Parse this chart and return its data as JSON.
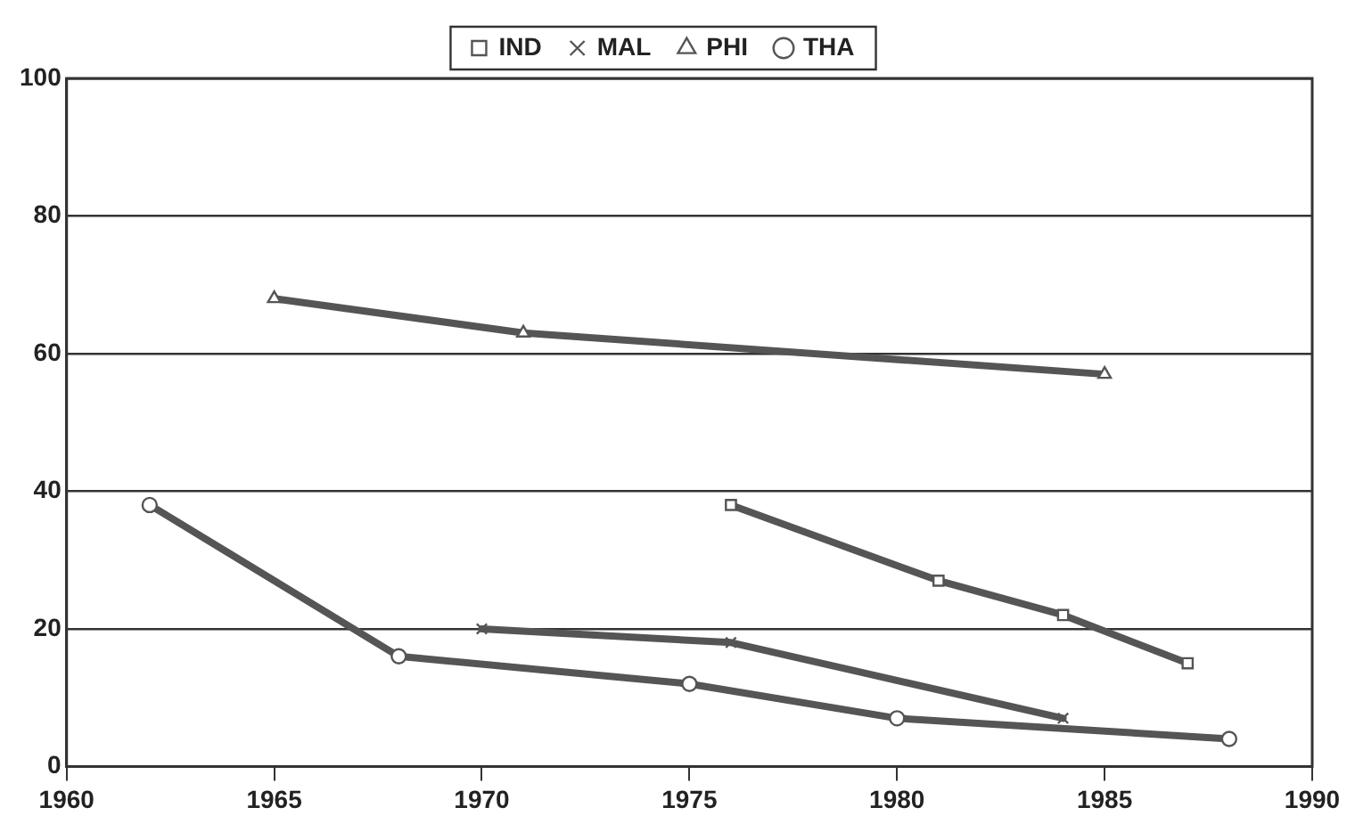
{
  "chart_data": {
    "type": "line",
    "xlim": [
      1960,
      1990
    ],
    "xticks": [
      1960,
      1965,
      1970,
      1975,
      1980,
      1985,
      1990
    ],
    "ylim": [
      0,
      100
    ],
    "yticks": [
      0,
      20,
      40,
      60,
      80,
      100
    ],
    "grid": "y",
    "legend": "top",
    "line_style": "solid",
    "series": [
      {
        "name": "IND",
        "color": "#555555",
        "marker": "square",
        "x": [
          1976,
          1981,
          1984,
          1987
        ],
        "values": [
          38,
          27,
          22,
          15
        ]
      },
      {
        "name": "MAL",
        "color": "#555555",
        "marker": "cross",
        "x": [
          1970,
          1976,
          1984
        ],
        "values": [
          20,
          18,
          7
        ]
      },
      {
        "name": "PHI",
        "color": "#555555",
        "marker": "triangle",
        "x": [
          1965,
          1971,
          1985
        ],
        "values": [
          68,
          63,
          57
        ]
      },
      {
        "name": "THA",
        "color": "#555555",
        "marker": "circle",
        "x": [
          1962,
          1968,
          1975,
          1980,
          1988
        ],
        "values": [
          38,
          16,
          12,
          7,
          4
        ]
      }
    ]
  }
}
